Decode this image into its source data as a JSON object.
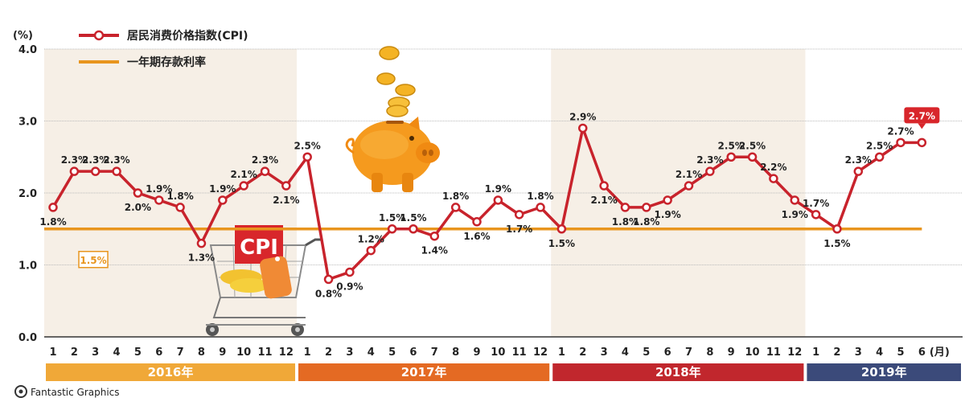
{
  "chart_data": {
    "type": "line",
    "y_unit_label": "(%)",
    "month_unit_label": "(月)",
    "ylim": [
      0,
      4
    ],
    "yticks": [
      "0.0",
      "1.0",
      "2.0",
      "3.0",
      "4.0"
    ],
    "x": [
      "1",
      "2",
      "3",
      "4",
      "5",
      "6",
      "7",
      "8",
      "9",
      "10",
      "11",
      "12",
      "1",
      "2",
      "3",
      "4",
      "5",
      "6",
      "7",
      "8",
      "9",
      "10",
      "11",
      "12",
      "1",
      "2",
      "3",
      "4",
      "5",
      "6",
      "7",
      "8",
      "9",
      "10",
      "11",
      "12",
      "1",
      "2",
      "3",
      "4",
      "5",
      "6"
    ],
    "years": [
      {
        "label": "2016年",
        "color": "#f0a838",
        "start": 0,
        "end": 11
      },
      {
        "label": "2017年",
        "color": "#e46a23",
        "start": 12,
        "end": 23
      },
      {
        "label": "2018年",
        "color": "#c1272d",
        "start": 24,
        "end": 35
      },
      {
        "label": "2019年",
        "color": "#3b4a7a",
        "start": 36,
        "end": 41
      }
    ],
    "series": [
      {
        "name": "居民消费价格指数(CPI)",
        "color": "#c8232c",
        "values": [
          1.8,
          2.3,
          2.3,
          2.3,
          2.0,
          1.9,
          1.8,
          1.3,
          1.9,
          2.1,
          2.3,
          2.1,
          2.5,
          0.8,
          0.9,
          1.2,
          1.5,
          1.5,
          1.4,
          1.8,
          1.6,
          1.9,
          1.7,
          1.8,
          1.5,
          2.9,
          2.1,
          1.8,
          1.8,
          1.9,
          2.1,
          2.3,
          2.5,
          2.5,
          2.2,
          1.9,
          1.7,
          1.5,
          2.3,
          2.5,
          2.7,
          2.7
        ],
        "labels": [
          "1.8%",
          "2.3%",
          "2.3%",
          "2.3%",
          "2.0%",
          "1.9%",
          "1.8%",
          "1.3%",
          "1.9%",
          "2.1%",
          "2.3%",
          "2.1%",
          "2.5%",
          "0.8%",
          "0.9%",
          "1.2%",
          "1.5%",
          "1.5%",
          "1.4%",
          "1.8%",
          "1.6%",
          "1.9%",
          "1.7%",
          "1.8%",
          "1.5%",
          "2.9%",
          "2.1%",
          "1.8%",
          "1.8%",
          "1.9%",
          "2.1%",
          "2.3%",
          "2.5%",
          "2.5%",
          "2.2%",
          "1.9%",
          "1.7%",
          "1.5%",
          "2.3%",
          "2.5%",
          "2.7%",
          "2.7%"
        ]
      },
      {
        "name": "一年期存款利率",
        "color": "#e8951e",
        "value": 1.5,
        "label": "1.5%"
      }
    ],
    "grid": true,
    "legend_position": "top-left",
    "credit": "Fantastic Graphics"
  },
  "illustrations": {
    "cart_sign": "CPI"
  }
}
